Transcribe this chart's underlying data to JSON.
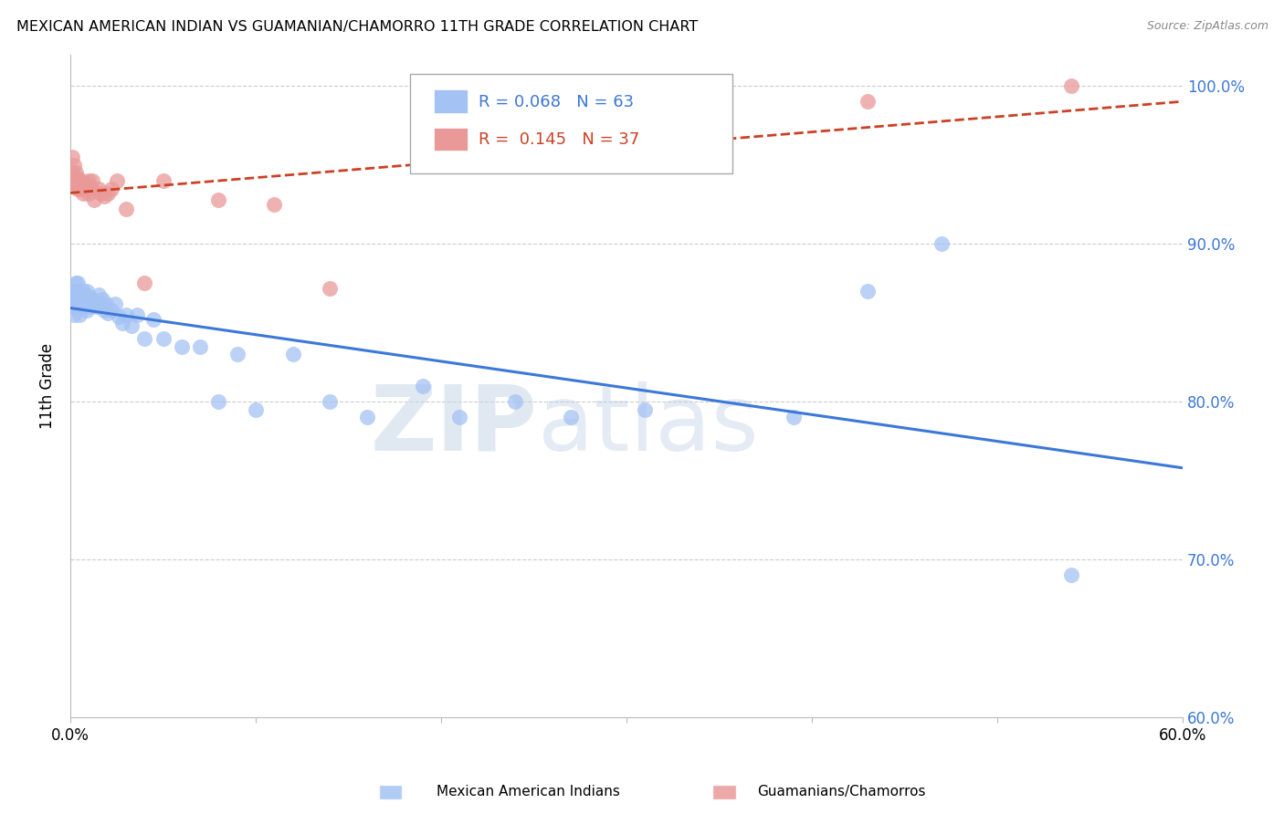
{
  "title": "MEXICAN AMERICAN INDIAN VS GUAMANIAN/CHAMORRO 11TH GRADE CORRELATION CHART",
  "source": "Source: ZipAtlas.com",
  "ylabel": "11th Grade",
  "xlim": [
    0.0,
    0.6
  ],
  "ylim": [
    0.6,
    1.02
  ],
  "yticks": [
    0.6,
    0.7,
    0.8,
    0.9,
    1.0
  ],
  "ytick_labels": [
    "60.0%",
    "70.0%",
    "80.0%",
    "90.0%",
    "100.0%"
  ],
  "xticks": [
    0.0,
    0.1,
    0.2,
    0.3,
    0.4,
    0.5,
    0.6
  ],
  "xtick_labels": [
    "0.0%",
    "",
    "",
    "",
    "",
    "",
    "60.0%"
  ],
  "blue_R": 0.068,
  "blue_N": 63,
  "pink_R": 0.145,
  "pink_N": 37,
  "blue_color": "#a4c2f4",
  "pink_color": "#ea9999",
  "blue_line_color": "#3c78d8",
  "pink_line_color": "#cc4125",
  "legend_label_blue": "Mexican American Indians",
  "legend_label_pink": "Guamanians/Chamorros",
  "watermark_zip": "ZIP",
  "watermark_atlas": "atlas",
  "blue_x": [
    0.001,
    0.001,
    0.002,
    0.002,
    0.002,
    0.003,
    0.003,
    0.003,
    0.004,
    0.004,
    0.004,
    0.005,
    0.005,
    0.005,
    0.006,
    0.006,
    0.007,
    0.007,
    0.007,
    0.008,
    0.008,
    0.009,
    0.009,
    0.01,
    0.01,
    0.011,
    0.011,
    0.012,
    0.013,
    0.014,
    0.015,
    0.016,
    0.017,
    0.018,
    0.019,
    0.02,
    0.022,
    0.024,
    0.026,
    0.028,
    0.03,
    0.033,
    0.036,
    0.04,
    0.045,
    0.05,
    0.06,
    0.07,
    0.08,
    0.09,
    0.1,
    0.12,
    0.14,
    0.16,
    0.19,
    0.21,
    0.24,
    0.27,
    0.31,
    0.39,
    0.43,
    0.47,
    0.54
  ],
  "blue_y": [
    0.87,
    0.86,
    0.87,
    0.86,
    0.855,
    0.875,
    0.87,
    0.865,
    0.875,
    0.87,
    0.865,
    0.87,
    0.86,
    0.855,
    0.868,
    0.862,
    0.87,
    0.865,
    0.86,
    0.868,
    0.862,
    0.87,
    0.858,
    0.865,
    0.862,
    0.866,
    0.86,
    0.865,
    0.862,
    0.86,
    0.868,
    0.862,
    0.865,
    0.858,
    0.862,
    0.856,
    0.858,
    0.862,
    0.854,
    0.85,
    0.855,
    0.848,
    0.855,
    0.84,
    0.852,
    0.84,
    0.835,
    0.835,
    0.8,
    0.83,
    0.795,
    0.83,
    0.8,
    0.79,
    0.81,
    0.79,
    0.8,
    0.79,
    0.795,
    0.79,
    0.87,
    0.9,
    0.69
  ],
  "pink_x": [
    0.001,
    0.001,
    0.002,
    0.002,
    0.002,
    0.003,
    0.003,
    0.003,
    0.004,
    0.004,
    0.004,
    0.005,
    0.005,
    0.006,
    0.007,
    0.007,
    0.008,
    0.009,
    0.01,
    0.01,
    0.011,
    0.012,
    0.013,
    0.015,
    0.016,
    0.018,
    0.02,
    0.022,
    0.025,
    0.03,
    0.04,
    0.05,
    0.08,
    0.11,
    0.14,
    0.43,
    0.54
  ],
  "pink_y": [
    0.955,
    0.945,
    0.95,
    0.94,
    0.938,
    0.945,
    0.94,
    0.938,
    0.942,
    0.938,
    0.935,
    0.94,
    0.935,
    0.94,
    0.936,
    0.932,
    0.938,
    0.935,
    0.94,
    0.932,
    0.936,
    0.94,
    0.928,
    0.935,
    0.932,
    0.93,
    0.932,
    0.935,
    0.94,
    0.922,
    0.875,
    0.94,
    0.928,
    0.925,
    0.872,
    0.99,
    1.0
  ]
}
